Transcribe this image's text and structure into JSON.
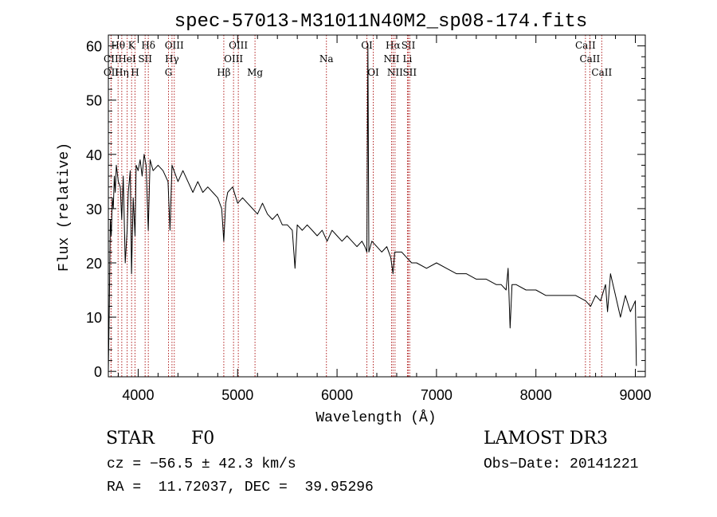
{
  "chart_data": {
    "type": "line",
    "title": "spec-57013-M31011N40M2_sp08-174.fits",
    "xlabel": "Wavelength (Å)",
    "ylabel": "Flux (relative)",
    "xlim": [
      3700,
      9100
    ],
    "ylim": [
      -1,
      62
    ],
    "xticks": [
      4000,
      5000,
      6000,
      7000,
      8000,
      9000
    ],
    "yticks": [
      0,
      10,
      20,
      30,
      40,
      50,
      60
    ],
    "grid": false,
    "series": [
      {
        "name": "spectrum",
        "x": [
          3700,
          3710,
          3720,
          3730,
          3740,
          3750,
          3760,
          3770,
          3780,
          3800,
          3820,
          3835,
          3850,
          3870,
          3889,
          3900,
          3920,
          3933,
          3950,
          3968,
          3980,
          4000,
          4020,
          4040,
          4060,
          4080,
          4101,
          4120,
          4150,
          4200,
          4250,
          4300,
          4320,
          4340,
          4360,
          4380,
          4400,
          4450,
          4500,
          4550,
          4600,
          4650,
          4700,
          4750,
          4800,
          4840,
          4861,
          4880,
          4900,
          4950,
          5000,
          5050,
          5100,
          5150,
          5200,
          5250,
          5300,
          5350,
          5400,
          5450,
          5500,
          5550,
          5577,
          5600,
          5650,
          5700,
          5750,
          5800,
          5850,
          5900,
          5950,
          6000,
          6050,
          6100,
          6150,
          6200,
          6250,
          6280,
          6300,
          6310,
          6320,
          6350,
          6400,
          6450,
          6500,
          6540,
          6563,
          6580,
          6600,
          6650,
          6700,
          6750,
          6800,
          6900,
          7000,
          7100,
          7200,
          7300,
          7400,
          7500,
          7600,
          7650,
          7700,
          7720,
          7740,
          7760,
          7800,
          7900,
          8000,
          8100,
          8200,
          8300,
          8400,
          8500,
          8550,
          8600,
          8650,
          8700,
          8720,
          8750,
          8800,
          8850,
          8900,
          8950,
          9000,
          9010
        ],
        "y": [
          0,
          12,
          28,
          25,
          32,
          30,
          36,
          33,
          38,
          35,
          34,
          28,
          36,
          20,
          26,
          33,
          37,
          18,
          32,
          25,
          38,
          37,
          39,
          36,
          40,
          38,
          26,
          39,
          37,
          38,
          37,
          35,
          26,
          38,
          37,
          36,
          35,
          37,
          35,
          33,
          35,
          33,
          34,
          33,
          32,
          30,
          24,
          31,
          33,
          34,
          31,
          32,
          31,
          30,
          29,
          31,
          29,
          28,
          29,
          27,
          27,
          26,
          19,
          27,
          26,
          27,
          26,
          25,
          26,
          24,
          26,
          25,
          24,
          25,
          24,
          23,
          24,
          23,
          22,
          60,
          22,
          24,
          23,
          22,
          23,
          21,
          18,
          22,
          22,
          22,
          21,
          20,
          20,
          19,
          20,
          19,
          18,
          18,
          17,
          17,
          16,
          16,
          15,
          19,
          8,
          16,
          16,
          15,
          15,
          14,
          14,
          14,
          14,
          13,
          12,
          14,
          13,
          16,
          11,
          18,
          14,
          10,
          14,
          11,
          13,
          1
        ]
      }
    ],
    "line_markers": [
      {
        "label": "Hθ",
        "x": 3798,
        "row": 1
      },
      {
        "label": "K",
        "x": 3934,
        "row": 1
      },
      {
        "label": "Hδ",
        "x": 4102,
        "row": 1
      },
      {
        "label": "OIII",
        "x": 4363,
        "row": 1
      },
      {
        "label": "OIII",
        "x": 5007,
        "row": 1
      },
      {
        "label": "OI",
        "x": 6300,
        "row": 1
      },
      {
        "label": "Hα",
        "x": 6563,
        "row": 1
      },
      {
        "label": "SII",
        "x": 6717,
        "row": 1
      },
      {
        "label": "CaII",
        "x": 8498,
        "row": 1
      },
      {
        "label": "CII",
        "x": 3727,
        "row": 2
      },
      {
        "label": "HeI",
        "x": 3889,
        "row": 2
      },
      {
        "label": "SII",
        "x": 4070,
        "row": 2
      },
      {
        "label": "Hγ",
        "x": 4340,
        "row": 2
      },
      {
        "label": "OIII",
        "x": 4959,
        "row": 2
      },
      {
        "label": "Na",
        "x": 5893,
        "row": 2
      },
      {
        "label": "NII",
        "x": 6548,
        "row": 2
      },
      {
        "label": "Li",
        "x": 6708,
        "row": 2
      },
      {
        "label": "CaII",
        "x": 8542,
        "row": 2
      },
      {
        "label": "OII",
        "x": 3728,
        "row": 3
      },
      {
        "label": "Hη",
        "x": 3835,
        "row": 3
      },
      {
        "label": "H",
        "x": 3968,
        "row": 3
      },
      {
        "label": "G",
        "x": 4305,
        "row": 3
      },
      {
        "label": "Hβ",
        "x": 4861,
        "row": 3
      },
      {
        "label": "Mg",
        "x": 5175,
        "row": 3
      },
      {
        "label": "OI",
        "x": 6364,
        "row": 3
      },
      {
        "label": "NII",
        "x": 6583,
        "row": 3
      },
      {
        "label": "SII",
        "x": 6731,
        "row": 3
      },
      {
        "label": "CaII",
        "x": 8662,
        "row": 3
      }
    ]
  },
  "info": {
    "class": "STAR",
    "subclass": "F0",
    "survey": "LAMOST DR3",
    "cz": "cz = −56.5 ± 42.3 km/s",
    "obs_date": "Obs−Date: 20141221",
    "coords": "RA =  11.72037, DEC =  39.95296"
  },
  "colors": {
    "axes": "#000000",
    "spectrum": "#000000",
    "marker_line": "#b22222"
  }
}
